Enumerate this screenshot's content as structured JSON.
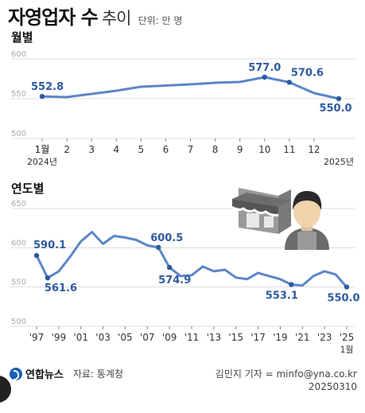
{
  "header": {
    "title_main": "자영업자 수",
    "title_sub": "추이",
    "unit": "단위: 만 명"
  },
  "colors": {
    "line": "#5b86c8",
    "point": "#2d5aa0",
    "label": "#2d5aa0",
    "grid": "#dddddd",
    "tick": "#aaaaaa"
  },
  "chart_data": [
    {
      "type": "line",
      "label": "월별",
      "x": [
        "1월",
        "2",
        "3",
        "4",
        "5",
        "6",
        "7",
        "8",
        "9",
        "10",
        "11",
        "12",
        "1월"
      ],
      "x_sub": {
        "0": "2024년",
        "12": "2025년"
      },
      "values": [
        552.8,
        552.0,
        556.0,
        560.0,
        565.0,
        566.5,
        568.0,
        570.0,
        571.0,
        577.0,
        570.6,
        557.0,
        550.0
      ],
      "annotations": [
        {
          "index": 0,
          "text": "552.8"
        },
        {
          "index": 9,
          "text": "577.0"
        },
        {
          "index": 10,
          "text": "570.6"
        },
        {
          "index": 12,
          "text": "550.0"
        }
      ],
      "y_ticks": [
        600,
        550,
        500
      ],
      "ylim": [
        500,
        600
      ]
    },
    {
      "type": "line",
      "label": "연도별",
      "x": [
        "'97",
        "'98",
        "'99",
        "'00",
        "'01",
        "'02",
        "'03",
        "'04",
        "'05",
        "'06",
        "'07",
        "'08",
        "'09",
        "'10",
        "'11",
        "'12",
        "'13",
        "'14",
        "'15",
        "'16",
        "'17",
        "'18",
        "'19",
        "'20",
        "'21",
        "'22",
        "'23",
        "'24",
        "'25"
      ],
      "x_tick_labels": [
        "'97",
        "'99",
        "'01",
        "'03",
        "'05",
        "'07",
        "'09",
        "'11",
        "'13",
        "'15",
        "'17",
        "'19",
        "'21",
        "'23",
        "'25"
      ],
      "x_sub": {
        "28": "1월"
      },
      "values": [
        590.1,
        561.6,
        570.0,
        588.0,
        608.0,
        620.0,
        605.0,
        615.0,
        613.0,
        610.0,
        603.0,
        600.5,
        574.9,
        564.0,
        565.0,
        576.0,
        570.0,
        572.0,
        562.0,
        560.0,
        568.0,
        564.0,
        560.0,
        553.1,
        552.0,
        564.0,
        570.0,
        566.0,
        550.0
      ],
      "annotations": [
        {
          "index": 0,
          "text": "590.1"
        },
        {
          "index": 1,
          "text": "561.6"
        },
        {
          "index": 11,
          "text": "600.5"
        },
        {
          "index": 12,
          "text": "574.9"
        },
        {
          "index": 23,
          "text": "553.1"
        },
        {
          "index": 28,
          "text": "550.0"
        }
      ],
      "y_ticks": [
        650,
        600,
        550,
        500
      ],
      "ylim": [
        500,
        650
      ]
    }
  ],
  "footer": {
    "logo": "연합뉴스",
    "source": "자료: 통계청",
    "credit": "김민지 기자 = minfo@yna.co.kr",
    "date": "20250310"
  }
}
